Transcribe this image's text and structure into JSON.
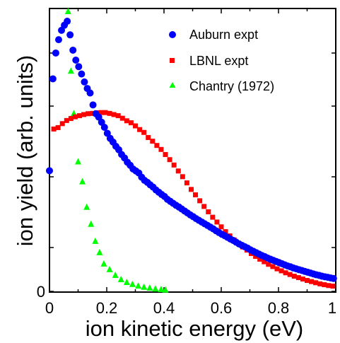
{
  "chart_data": {
    "type": "scatter",
    "xlabel": "ion kinetic energy (eV)",
    "ylabel": "ion yield (arb. units)",
    "xlim": [
      0,
      1
    ],
    "ylim": [
      0,
      1
    ],
    "x_ticks": [
      "0",
      "0.2",
      "0.4",
      "0.6",
      "0.8",
      "1"
    ],
    "y_ticks": [
      "0"
    ],
    "grid": false,
    "legend_position": "top-right",
    "series": [
      {
        "name": "Auburn expt",
        "marker": "circle",
        "color": "#0000ff",
        "x": [
          0.0,
          0.012,
          0.022,
          0.032,
          0.042,
          0.052,
          0.062,
          0.072,
          0.082,
          0.092,
          0.102,
          0.112,
          0.122,
          0.132,
          0.142,
          0.152,
          0.162,
          0.172,
          0.182,
          0.192,
          0.202,
          0.212,
          0.222,
          0.232,
          0.242,
          0.252,
          0.262,
          0.272,
          0.282,
          0.292,
          0.302,
          0.312,
          0.322,
          0.332,
          0.342,
          0.352,
          0.362,
          0.372,
          0.382,
          0.392,
          0.402,
          0.412,
          0.422,
          0.432,
          0.442,
          0.452,
          0.462,
          0.472,
          0.482,
          0.492,
          0.502,
          0.512,
          0.522,
          0.532,
          0.542,
          0.552,
          0.562,
          0.572,
          0.582,
          0.592,
          0.602,
          0.612,
          0.622,
          0.632,
          0.642,
          0.652,
          0.662,
          0.672,
          0.682,
          0.692,
          0.702,
          0.712,
          0.722,
          0.732,
          0.742,
          0.752,
          0.762,
          0.772,
          0.782,
          0.792,
          0.802,
          0.812,
          0.822,
          0.832,
          0.842,
          0.852,
          0.862,
          0.872,
          0.882,
          0.892,
          0.902,
          0.912,
          0.922,
          0.932,
          0.942,
          0.952,
          0.962,
          0.972,
          0.982,
          0.992
        ],
        "y": [
          0.428,
          0.752,
          0.843,
          0.89,
          0.923,
          0.941,
          0.955,
          0.907,
          0.853,
          0.818,
          0.795,
          0.769,
          0.741,
          0.718,
          0.702,
          0.66,
          0.629,
          0.617,
          0.599,
          0.581,
          0.56,
          0.542,
          0.529,
          0.514,
          0.502,
          0.485,
          0.473,
          0.458,
          0.447,
          0.434,
          0.427,
          0.42,
          0.405,
          0.394,
          0.387,
          0.378,
          0.37,
          0.36,
          0.352,
          0.344,
          0.337,
          0.327,
          0.32,
          0.313,
          0.306,
          0.3,
          0.293,
          0.286,
          0.279,
          0.272,
          0.266,
          0.259,
          0.253,
          0.247,
          0.241,
          0.235,
          0.229,
          0.223,
          0.216,
          0.21,
          0.204,
          0.199,
          0.193,
          0.187,
          0.182,
          0.176,
          0.17,
          0.165,
          0.16,
          0.155,
          0.149,
          0.144,
          0.139,
          0.134,
          0.129,
          0.125,
          0.12,
          0.116,
          0.112,
          0.108,
          0.104,
          0.1,
          0.096,
          0.092,
          0.089,
          0.085,
          0.082,
          0.079,
          0.076,
          0.073,
          0.07,
          0.067,
          0.064,
          0.061,
          0.059,
          0.056,
          0.054,
          0.052,
          0.05,
          0.048
        ]
      },
      {
        "name": "LBNL expt",
        "marker": "square",
        "color": "#ff0000",
        "x": [
          0.0,
          0.015,
          0.03,
          0.045,
          0.06,
          0.075,
          0.09,
          0.105,
          0.12,
          0.135,
          0.15,
          0.165,
          0.18,
          0.195,
          0.21,
          0.225,
          0.24,
          0.255,
          0.27,
          0.285,
          0.3,
          0.315,
          0.33,
          0.345,
          0.36,
          0.375,
          0.39,
          0.405,
          0.42,
          0.435,
          0.45,
          0.465,
          0.48,
          0.495,
          0.51,
          0.525,
          0.54,
          0.555,
          0.57,
          0.585,
          0.6,
          0.615,
          0.63,
          0.645,
          0.66,
          0.675,
          0.69,
          0.705,
          0.72,
          0.735,
          0.75,
          0.765,
          0.78,
          0.795,
          0.81,
          0.825,
          0.84,
          0.855,
          0.87,
          0.885,
          0.9,
          0.915,
          0.93,
          0.945,
          0.96,
          0.975,
          0.99
        ],
        "y": [
          0.428,
          0.575,
          0.58,
          0.594,
          0.605,
          0.612,
          0.618,
          0.622,
          0.626,
          0.629,
          0.63,
          0.632,
          0.633,
          0.633,
          0.63,
          0.626,
          0.622,
          0.613,
          0.604,
          0.597,
          0.586,
          0.573,
          0.563,
          0.545,
          0.532,
          0.517,
          0.503,
          0.485,
          0.467,
          0.448,
          0.427,
          0.407,
          0.385,
          0.362,
          0.343,
          0.322,
          0.302,
          0.283,
          0.264,
          0.247,
          0.23,
          0.213,
          0.198,
          0.184,
          0.172,
          0.159,
          0.148,
          0.136,
          0.126,
          0.116,
          0.107,
          0.098,
          0.09,
          0.082,
          0.075,
          0.068,
          0.062,
          0.056,
          0.051,
          0.046,
          0.041,
          0.037,
          0.033,
          0.029,
          0.026,
          0.023,
          0.021
        ]
      },
      {
        "name": "Chantry (1972)",
        "marker": "triangle",
        "color": "#00ff00",
        "x": [
          0.065,
          0.075,
          0.085,
          0.1,
          0.115,
          0.13,
          0.145,
          0.16,
          0.175,
          0.19,
          0.21,
          0.23,
          0.25,
          0.27,
          0.29,
          0.31,
          0.33,
          0.35,
          0.37,
          0.39,
          0.405
        ],
        "y": [
          0.99,
          0.78,
          0.63,
          0.46,
          0.39,
          0.3,
          0.24,
          0.18,
          0.14,
          0.1,
          0.08,
          0.06,
          0.045,
          0.035,
          0.028,
          0.022,
          0.018,
          0.015,
          0.012,
          0.01,
          0.008
        ]
      }
    ]
  }
}
